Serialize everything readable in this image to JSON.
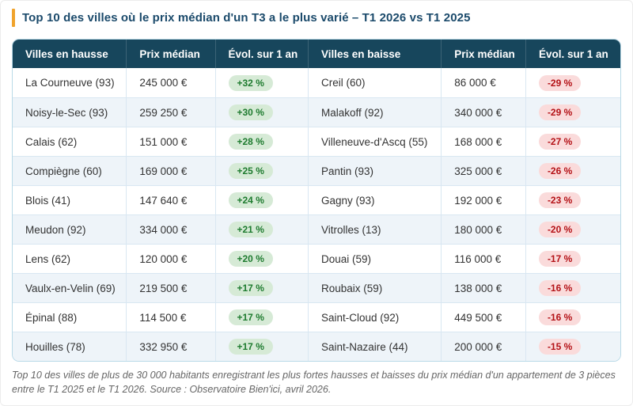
{
  "title": "Top 10 des villes où le prix médian d'un T3 a le plus varié – T1 2026 vs T1 2025",
  "footer": "Top 10 des villes de plus de 30 000 habitants enregistrant les plus fortes hausses et baisses du prix médian d'un appartement de 3 pièces entre le T1 2025 et le T1 2026. Source : Observatoire Bien'ici, avril 2026.",
  "chart_data": {
    "type": "table",
    "title": "Top 10 des villes où le prix médian d'un T3 a le plus varié – T1 2026 vs T1 2025",
    "columns": [
      "Villes en hausse",
      "Prix médian",
      "Évol. sur 1 an",
      "Villes en baisse",
      "Prix médian",
      "Évol. sur 1 an"
    ],
    "rows": [
      {
        "city_up": "La Courneuve (93)",
        "price_up": "245 000 €",
        "evol_up": "+32 %",
        "city_down": "Creil (60)",
        "price_down": "86 000 €",
        "evol_down": "-29 %"
      },
      {
        "city_up": "Noisy-le-Sec (93)",
        "price_up": "259 250 €",
        "evol_up": "+30 %",
        "city_down": "Malakoff (92)",
        "price_down": "340 000 €",
        "evol_down": "-29 %"
      },
      {
        "city_up": "Calais (62)",
        "price_up": "151 000 €",
        "evol_up": "+28 %",
        "city_down": "Villeneuve-d'Ascq (55)",
        "price_down": "168 000 €",
        "evol_down": "-27 %"
      },
      {
        "city_up": "Compiègne (60)",
        "price_up": "169 000 €",
        "evol_up": "+25 %",
        "city_down": "Pantin (93)",
        "price_down": "325 000 €",
        "evol_down": "-26 %"
      },
      {
        "city_up": "Blois (41)",
        "price_up": "147 640 €",
        "evol_up": "+24 %",
        "city_down": "Gagny (93)",
        "price_down": "192 000 €",
        "evol_down": "-23 %"
      },
      {
        "city_up": "Meudon (92)",
        "price_up": "334 000 €",
        "evol_up": "+21 %",
        "city_down": "Vitrolles (13)",
        "price_down": "180 000 €",
        "evol_down": "-20 %"
      },
      {
        "city_up": "Lens (62)",
        "price_up": "120 000 €",
        "evol_up": "+20 %",
        "city_down": "Douai (59)",
        "price_down": "116 000 €",
        "evol_down": "-17 %"
      },
      {
        "city_up": "Vaulx-en-Velin (69)",
        "price_up": "219 500 €",
        "evol_up": "+17 %",
        "city_down": "Roubaix (59)",
        "price_down": "138 000 €",
        "evol_down": "-16 %"
      },
      {
        "city_up": "Épinal (88)",
        "price_up": "114 500 €",
        "evol_up": "+17 %",
        "city_down": "Saint-Cloud (92)",
        "price_down": "449 500 €",
        "evol_down": "-16 %"
      },
      {
        "city_up": "Houilles (78)",
        "price_up": "332 950 €",
        "evol_up": "+17 %",
        "city_down": "Saint-Nazaire (44)",
        "price_down": "200 000 €",
        "evol_down": "-15 %"
      }
    ]
  },
  "colors": {
    "accent_bar": "#f0a32c",
    "title_text": "#1b4a6b",
    "header_bg": "#17465c",
    "header_text": "#ffffff",
    "row_alt_bg": "#eef4f9",
    "table_border": "#badae8",
    "positive_badge_bg": "#d6ead6",
    "positive_badge_text": "#1e7b2f",
    "negative_badge_bg": "#fadbdb",
    "negative_badge_text": "#b41217",
    "footer_text": "#666666"
  }
}
